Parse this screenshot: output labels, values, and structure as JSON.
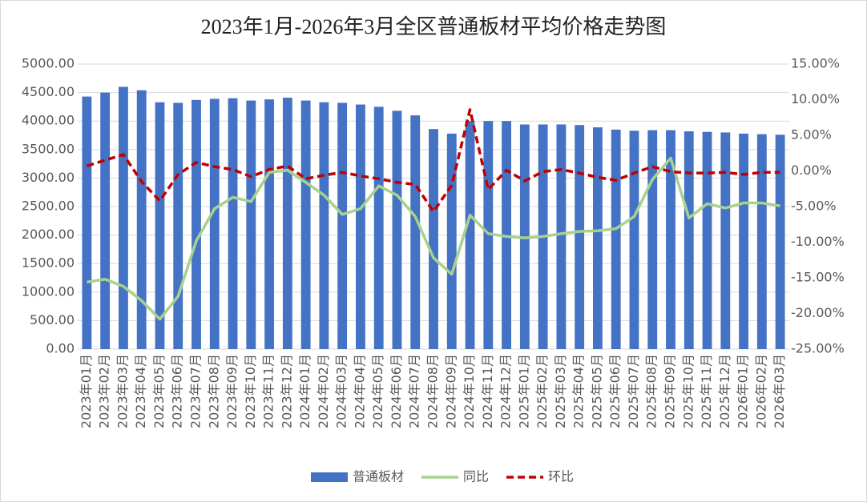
{
  "chart_data": {
    "type": "bar_line",
    "title": "2023年1月-2026年3月全区普通板材平均价格走势图",
    "categories": [
      "2023年01月",
      "2023年02月",
      "2023年03月",
      "2023年04月",
      "2023年05月",
      "2023年06月",
      "2023年07月",
      "2023年08月",
      "2023年09月",
      "2023年10月",
      "2023年11月",
      "2023年12月",
      "2024年01月",
      "2024年02月",
      "2024年03月",
      "2024年04月",
      "2024年05月",
      "2024年06月",
      "2024年07月",
      "2024年08月",
      "2024年09月",
      "2024年10月",
      "2024年11月",
      "2024年12月",
      "2025年01月",
      "2025年02月",
      "2025年03月",
      "2025年04月",
      "2025年05月",
      "2025年06月",
      "2025年07月",
      "2025年08月",
      "2025年09月",
      "2025年10月",
      "2025年11月",
      "2025年12月",
      "2026年01月",
      "2026年02月",
      "2026年03月"
    ],
    "series": [
      {
        "name": "普通板材",
        "type": "bar",
        "color": "#4472c4",
        "axis": "y",
        "values": [
          4430,
          4500,
          4600,
          4540,
          4330,
          4320,
          4370,
          4390,
          4400,
          4360,
          4380,
          4410,
          4360,
          4330,
          4320,
          4290,
          4250,
          4180,
          4100,
          3860,
          3780,
          4000,
          4000,
          4000,
          3940,
          3940,
          3940,
          3930,
          3890,
          3850,
          3830,
          3840,
          3840,
          3820,
          3810,
          3800,
          3780,
          3770,
          3760
        ]
      },
      {
        "name": "同比",
        "type": "line",
        "color": "#a9d18e",
        "axis": "y2",
        "dashed": false,
        "values": [
          -15.6,
          -15.2,
          -16.2,
          -18.2,
          -20.8,
          -17.6,
          -9.8,
          -5.3,
          -3.7,
          -4.3,
          -0.2,
          0.1,
          -1.6,
          -3.4,
          -6.1,
          -5.3,
          -2.1,
          -3.4,
          -6.4,
          -12.2,
          -14.5,
          -6.2,
          -8.8,
          -9.2,
          -9.4,
          -9.2,
          -8.8,
          -8.5,
          -8.4,
          -8.1,
          -6.4,
          -1.2,
          1.8,
          -6.6,
          -4.6,
          -5.2,
          -4.5,
          -4.5,
          -4.9
        ]
      },
      {
        "name": "环比",
        "type": "line",
        "color": "#c00000",
        "axis": "y2",
        "dashed": true,
        "values": [
          0.7,
          1.5,
          2.3,
          -1.5,
          -4.2,
          -0.5,
          1.2,
          0.6,
          0.2,
          -0.8,
          0.2,
          0.7,
          -1.1,
          -0.6,
          -0.2,
          -0.7,
          -1.1,
          -1.6,
          -1.9,
          -5.7,
          -2.0,
          8.6,
          -2.6,
          0.1,
          -1.4,
          -0.1,
          0.2,
          -0.3,
          -0.9,
          -1.3,
          -0.3,
          0.6,
          -0.1,
          -0.3,
          -0.3,
          -0.2,
          -0.5,
          -0.2,
          -0.2
        ]
      }
    ],
    "ylim": [
      0,
      5000
    ],
    "yticks": [
      {
        "value": 0,
        "label": "0.00"
      },
      {
        "value": 500,
        "label": "500.00"
      },
      {
        "value": 1000,
        "label": "1000.00"
      },
      {
        "value": 1500,
        "label": "1500.00"
      },
      {
        "value": 2000,
        "label": "2000.00"
      },
      {
        "value": 2500,
        "label": "2500.00"
      },
      {
        "value": 3000,
        "label": "3000.00"
      },
      {
        "value": 3500,
        "label": "3500.00"
      },
      {
        "value": 4000,
        "label": "4000.00"
      },
      {
        "value": 4500,
        "label": "4500.00"
      },
      {
        "value": 5000,
        "label": "5000.00"
      }
    ],
    "y2lim": [
      -25,
      15
    ],
    "y2ticks": [
      {
        "value": -25,
        "label": "-25.00%"
      },
      {
        "value": -20,
        "label": "-20.00%"
      },
      {
        "value": -15,
        "label": "-15.00%"
      },
      {
        "value": -10,
        "label": "-10.00%"
      },
      {
        "value": -5,
        "label": "-5.00%"
      },
      {
        "value": 0,
        "label": "0.00%"
      },
      {
        "value": 5,
        "label": "5.00%"
      },
      {
        "value": 10,
        "label": "10.00%"
      },
      {
        "value": 15,
        "label": "15.00%"
      }
    ],
    "grid": true,
    "legend": "bottom"
  }
}
